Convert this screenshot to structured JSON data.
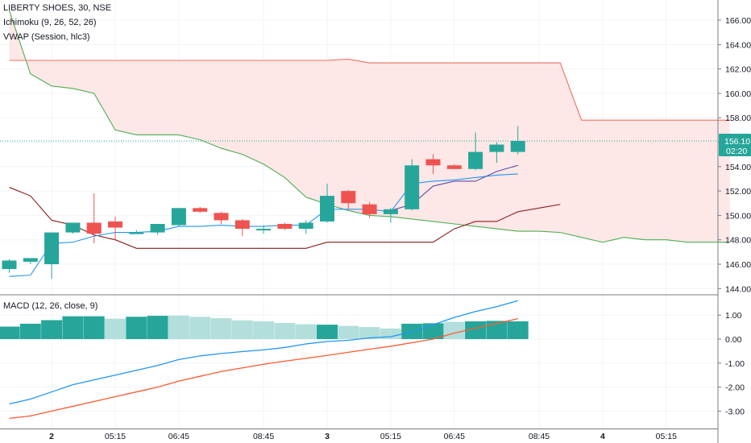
{
  "legend": {
    "symbol": "LIBERTY SHOES, 30, NSE",
    "ichimoku": "Ichimoku (9, 26, 52, 26)",
    "vwap": "VWAP (Session, hlc3)",
    "macd": "MACD (12, 26, close, 9)"
  },
  "price_badge": {
    "price": "156.10",
    "countdown": "02:20"
  },
  "colors": {
    "up": "#26a69a",
    "down": "#ef5350",
    "cloud": "#fde7e7",
    "spanA": "#4caf50",
    "spanB": "#f07060",
    "base": "#8b1a1a",
    "vwap": "#2196f3",
    "conv": "#5f4fa0",
    "macd": "#2196f3",
    "signal": "#ff5a2e",
    "hist_strong": "#26a69a",
    "hist_weak": "#b2dfdb"
  },
  "chart_data": [
    {
      "type": "candlestick",
      "title": "LIBERTY SHOES, 30, NSE",
      "ylim": [
        143.5,
        167.5
      ],
      "y_ticks": [
        "144.00",
        "146.00",
        "148.00",
        "150.00",
        "152.00",
        "154.00",
        "156.00",
        "158.00",
        "160.00",
        "162.00",
        "164.00",
        "166.00"
      ],
      "x_ticks": [
        "2",
        "05:15",
        "06:45",
        "08:45",
        "3",
        "05:15",
        "06:45",
        "08:45",
        "4",
        "05:15"
      ],
      "x_ticks_bold": [
        "2",
        "3",
        "4"
      ],
      "last_price": 156.1,
      "candles": [
        {
          "o": 145.6,
          "h": 146.4,
          "l": 145.3,
          "c": 146.3
        },
        {
          "o": 146.2,
          "h": 146.4,
          "l": 146.0,
          "c": 146.5
        },
        {
          "o": 146.0,
          "h": 148.6,
          "l": 144.8,
          "c": 148.6
        },
        {
          "o": 148.6,
          "h": 149.4,
          "l": 148.5,
          "c": 149.4
        },
        {
          "o": 149.4,
          "h": 151.8,
          "l": 147.7,
          "c": 148.5
        },
        {
          "o": 149.5,
          "h": 149.9,
          "l": 148.0,
          "c": 149.0
        },
        {
          "o": 148.6,
          "h": 148.8,
          "l": 148.5,
          "c": 148.6
        },
        {
          "o": 148.6,
          "h": 149.3,
          "l": 148.4,
          "c": 149.3
        },
        {
          "o": 149.2,
          "h": 150.6,
          "l": 149.1,
          "c": 150.6
        },
        {
          "o": 150.6,
          "h": 150.7,
          "l": 150.2,
          "c": 150.3
        },
        {
          "o": 150.2,
          "h": 150.3,
          "l": 149.3,
          "c": 149.6
        },
        {
          "o": 149.6,
          "h": 149.7,
          "l": 148.3,
          "c": 148.9
        },
        {
          "o": 148.9,
          "h": 149.2,
          "l": 148.5,
          "c": 148.9
        },
        {
          "o": 149.3,
          "h": 149.4,
          "l": 148.8,
          "c": 148.9
        },
        {
          "o": 148.9,
          "h": 149.6,
          "l": 148.5,
          "c": 149.4
        },
        {
          "o": 149.5,
          "h": 152.6,
          "l": 149.4,
          "c": 151.6
        },
        {
          "o": 152.0,
          "h": 152.1,
          "l": 150.5,
          "c": 151.0
        },
        {
          "o": 150.9,
          "h": 151.1,
          "l": 149.8,
          "c": 150.1
        },
        {
          "o": 150.1,
          "h": 150.6,
          "l": 149.4,
          "c": 150.5
        },
        {
          "o": 150.5,
          "h": 154.6,
          "l": 150.4,
          "c": 154.1
        },
        {
          "o": 154.6,
          "h": 155.0,
          "l": 153.4,
          "c": 154.1
        },
        {
          "o": 154.1,
          "h": 154.2,
          "l": 153.8,
          "c": 153.8
        },
        {
          "o": 153.8,
          "h": 156.8,
          "l": 153.7,
          "c": 155.2
        },
        {
          "o": 155.2,
          "h": 156.0,
          "l": 154.3,
          "c": 155.8
        },
        {
          "o": 155.2,
          "h": 157.3,
          "l": 155.0,
          "c": 156.1
        }
      ],
      "ichimoku_span_a": [
        166.8,
        161.6,
        160.6,
        160.4,
        160.0,
        157.0,
        156.6,
        156.6,
        156.6,
        156.2,
        155.5,
        155.0,
        154.2,
        153.1,
        151.5,
        150.9,
        150.4,
        150.0,
        149.9,
        149.7,
        149.5,
        149.3,
        149.1,
        148.9,
        148.7,
        148.7,
        148.6,
        148.2,
        147.8,
        148.2,
        148.0,
        148.0,
        147.8,
        147.8,
        147.8
      ],
      "ichimoku_span_b": [
        162.7,
        162.7,
        162.7,
        162.7,
        162.7,
        162.7,
        162.7,
        162.7,
        162.7,
        162.7,
        162.7,
        162.7,
        162.7,
        162.7,
        162.7,
        162.7,
        162.8,
        162.5,
        162.5,
        162.5,
        162.5,
        162.5,
        162.5,
        162.5,
        162.5,
        162.5,
        162.5,
        157.8,
        157.8,
        157.8,
        157.8,
        157.8,
        157.8,
        157.8,
        157.8
      ],
      "base_line": [
        152.3,
        151.6,
        149.6,
        149.2,
        148.4,
        148.0,
        147.3,
        147.3,
        147.3,
        147.3,
        147.3,
        147.3,
        147.3,
        147.3,
        147.3,
        147.8,
        147.8,
        147.8,
        147.8,
        147.8,
        147.8,
        148.9,
        149.5,
        149.5,
        150.3,
        150.6,
        150.9
      ],
      "conversion_line": [
        null,
        null,
        null,
        null,
        null,
        null,
        null,
        null,
        null,
        null,
        null,
        null,
        null,
        null,
        null,
        null,
        null,
        null,
        150.4,
        150.9,
        152.4,
        152.8,
        152.8,
        153.6,
        154.1
      ],
      "vwap": [
        145.0,
        145.1,
        147.7,
        147.8,
        148.3,
        148.6,
        148.6,
        148.7,
        149.1,
        149.1,
        149.2,
        149.1,
        149.1,
        149.2,
        149.2,
        150.5,
        150.5,
        150.5,
        150.3,
        152.6,
        152.8,
        152.9,
        153.1,
        153.3,
        153.4
      ]
    },
    {
      "type": "macd",
      "title": "MACD (12, 26, close, 9)",
      "ylim": [
        -3.35,
        1.7
      ],
      "y_ticks": [
        "1.00",
        "0.00",
        "-1.00",
        "-2.00",
        "-3.00"
      ],
      "histogram": [
        0.52,
        0.64,
        0.79,
        0.95,
        0.95,
        0.85,
        0.93,
        0.97,
        0.98,
        0.93,
        0.87,
        0.78,
        0.74,
        0.67,
        0.62,
        0.6,
        0.55,
        0.5,
        0.44,
        0.64,
        0.66,
        0.72,
        0.74,
        0.76,
        0.74
      ],
      "histogram_strong": [
        true,
        true,
        true,
        true,
        true,
        false,
        true,
        true,
        false,
        false,
        false,
        false,
        false,
        false,
        false,
        true,
        false,
        false,
        false,
        true,
        true,
        false,
        true,
        true,
        true
      ],
      "macd": [
        -2.7,
        -2.5,
        -2.2,
        -1.9,
        -1.7,
        -1.5,
        -1.3,
        -1.1,
        -0.85,
        -0.7,
        -0.6,
        -0.52,
        -0.45,
        -0.35,
        -0.2,
        -0.1,
        -0.05,
        0.05,
        0.1,
        0.3,
        0.6,
        0.9,
        1.15,
        1.35,
        1.6
      ],
      "signal": [
        -3.3,
        -3.2,
        -3.0,
        -2.8,
        -2.6,
        -2.4,
        -2.2,
        -2.0,
        -1.75,
        -1.55,
        -1.35,
        -1.2,
        -1.05,
        -0.92,
        -0.8,
        -0.68,
        -0.55,
        -0.42,
        -0.3,
        -0.15,
        0.0,
        0.25,
        0.45,
        0.65,
        0.85
      ]
    }
  ]
}
